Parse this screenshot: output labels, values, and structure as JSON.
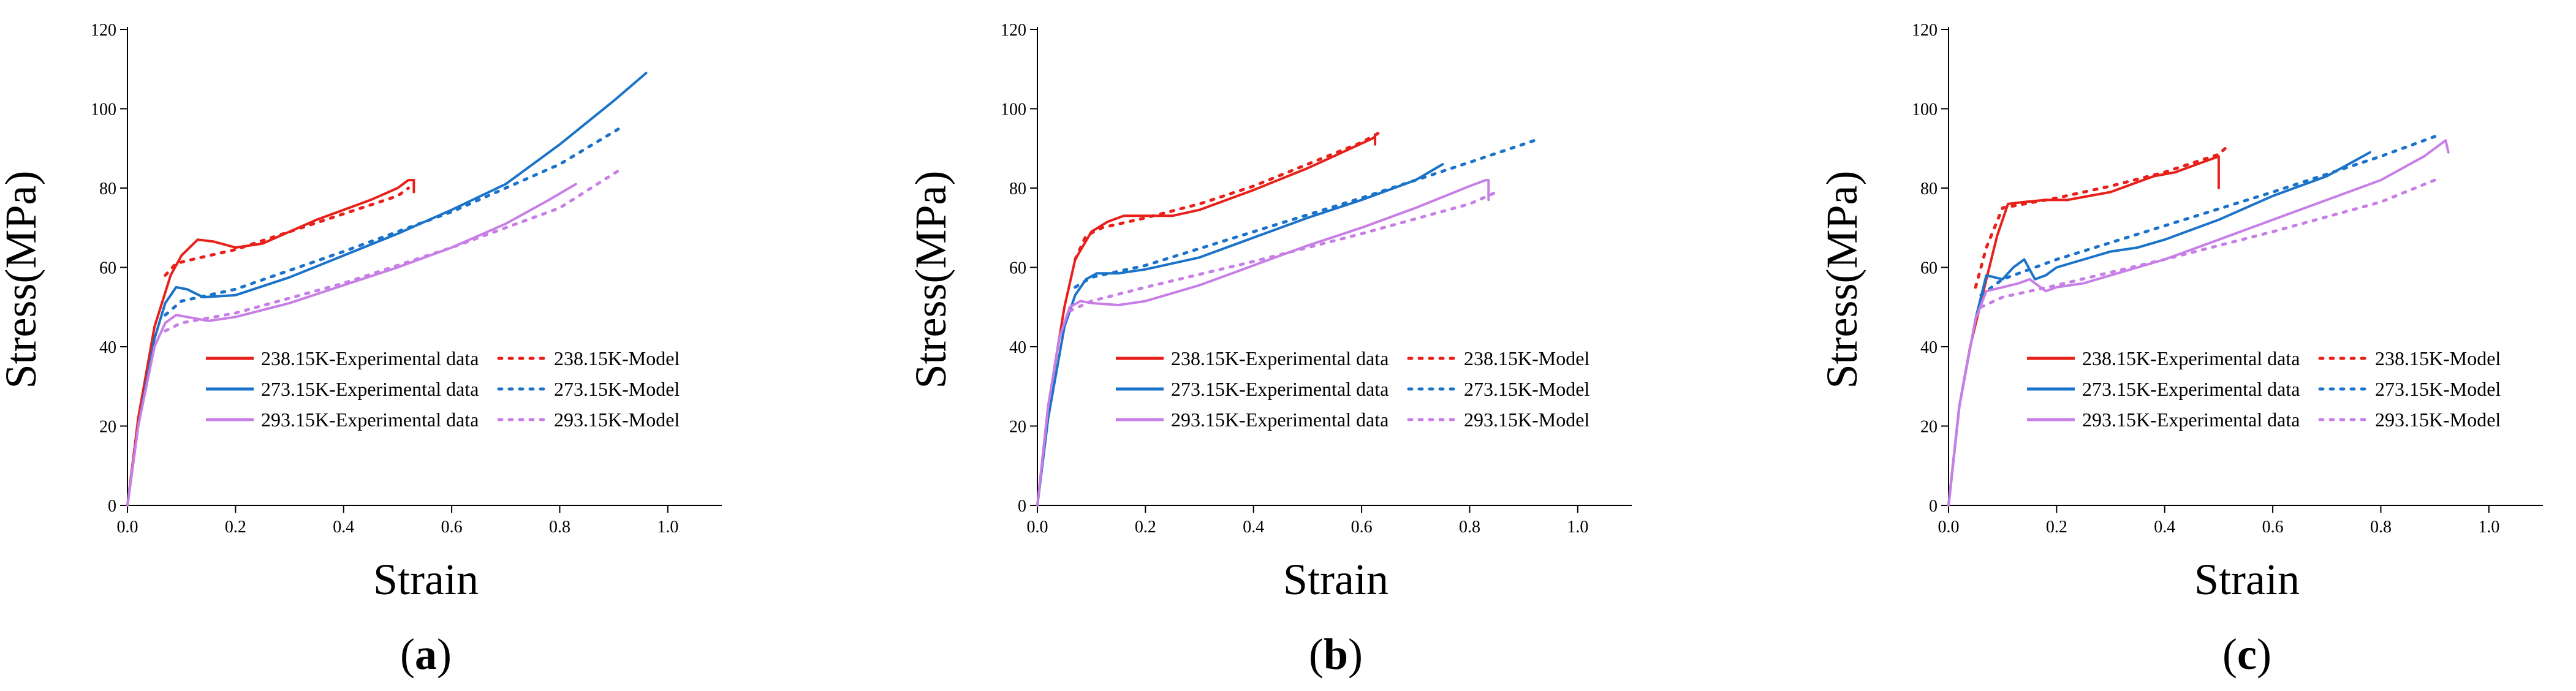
{
  "figure": {
    "panel_labels": [
      "a",
      "b",
      "c"
    ]
  },
  "chart_data": [
    {
      "type": "line",
      "panel": "a",
      "xlabel": "Strain",
      "ylabel": "Stress(MPa)",
      "xlim": [
        0,
        1.1
      ],
      "ylim": [
        0,
        120
      ],
      "xticks": [
        0,
        0.2,
        0.4,
        0.6,
        0.8,
        1.0
      ],
      "xtick_labels": [
        "0.0",
        "0.2",
        "0.4",
        "0.6",
        "0.8",
        "1.0"
      ],
      "yticks": [
        0,
        20,
        40,
        60,
        80,
        100,
        120
      ],
      "ytick_labels": [
        "0",
        "20",
        "40",
        "60",
        "80",
        "100",
        "120"
      ],
      "legend_position": "center-right",
      "series": [
        {
          "name": "238.15K-Experimental data",
          "color": "#e8201a",
          "style": "solid",
          "x": [
            0,
            0.02,
            0.05,
            0.08,
            0.1,
            0.13,
            0.16,
            0.2,
            0.25,
            0.3,
            0.35,
            0.4,
            0.45,
            0.5,
            0.52,
            0.53,
            0.53
          ],
          "y": [
            0,
            22,
            45,
            58,
            63,
            67,
            66.5,
            65,
            66,
            69,
            72,
            74.5,
            77,
            80,
            82,
            82,
            79
          ]
        },
        {
          "name": "238.15K-Model",
          "color": "#e8201a",
          "style": "dotted",
          "x": [
            0.07,
            0.09,
            0.12,
            0.2,
            0.3,
            0.4,
            0.5,
            0.52
          ],
          "y": [
            58,
            61,
            62,
            64.5,
            69,
            73.5,
            78,
            80
          ]
        },
        {
          "name": "273.15K-Experimental data",
          "color": "#1a72c9",
          "style": "solid",
          "x": [
            0,
            0.02,
            0.05,
            0.07,
            0.09,
            0.11,
            0.14,
            0.2,
            0.3,
            0.4,
            0.5,
            0.6,
            0.7,
            0.8,
            0.9,
            0.96
          ],
          "y": [
            0,
            20,
            42,
            51,
            55,
            54.5,
            52.5,
            53,
            57.5,
            63,
            68.5,
            74.5,
            81,
            91,
            102,
            109
          ]
        },
        {
          "name": "273.15K-Model",
          "color": "#1a72c9",
          "style": "dotted",
          "x": [
            0.07,
            0.1,
            0.2,
            0.4,
            0.6,
            0.8,
            0.91
          ],
          "y": [
            48,
            51.5,
            54.5,
            64,
            74,
            86,
            95
          ]
        },
        {
          "name": "293.15K-Experimental data",
          "color": "#c77fe6",
          "style": "solid",
          "x": [
            0,
            0.02,
            0.05,
            0.07,
            0.09,
            0.11,
            0.15,
            0.2,
            0.3,
            0.4,
            0.5,
            0.6,
            0.7,
            0.78,
            0.83
          ],
          "y": [
            0,
            20,
            40,
            46,
            48,
            47.5,
            46.5,
            47.5,
            51,
            55.5,
            60,
            65,
            71,
            77,
            81
          ]
        },
        {
          "name": "293.15K-Model",
          "color": "#c77fe6",
          "style": "dotted",
          "x": [
            0.07,
            0.1,
            0.2,
            0.4,
            0.6,
            0.8,
            0.91
          ],
          "y": [
            44,
            46,
            48.5,
            56,
            65,
            75,
            84.5
          ]
        }
      ]
    },
    {
      "type": "line",
      "panel": "b",
      "xlabel": "Strain",
      "ylabel": "Stress(MPa)",
      "xlim": [
        0,
        1.1
      ],
      "ylim": [
        0,
        120
      ],
      "xticks": [
        0,
        0.2,
        0.4,
        0.6,
        0.8,
        1.0
      ],
      "xtick_labels": [
        "0.0",
        "0.2",
        "0.4",
        "0.6",
        "0.8",
        "1.0"
      ],
      "yticks": [
        0,
        20,
        40,
        60,
        80,
        100,
        120
      ],
      "ytick_labels": [
        "0",
        "20",
        "40",
        "60",
        "80",
        "100",
        "120"
      ],
      "legend_position": "center-right",
      "series": [
        {
          "name": "238.15K-Experimental data",
          "color": "#e8201a",
          "style": "solid",
          "x": [
            0,
            0.02,
            0.05,
            0.07,
            0.1,
            0.13,
            0.16,
            0.2,
            0.25,
            0.3,
            0.4,
            0.5,
            0.58,
            0.62,
            0.625,
            0.625
          ],
          "y": [
            0,
            25,
            50,
            62,
            69,
            71.5,
            73,
            73,
            73,
            74.5,
            79.5,
            85,
            90,
            92.5,
            93,
            91
          ]
        },
        {
          "name": "238.15K-Model",
          "color": "#e8201a",
          "style": "dotted",
          "x": [
            0.07,
            0.09,
            0.12,
            0.2,
            0.3,
            0.4,
            0.5,
            0.6,
            0.64
          ],
          "y": [
            62,
            68,
            70,
            72.5,
            76,
            80.5,
            86,
            91.5,
            94.5
          ]
        },
        {
          "name": "273.15K-Experimental data",
          "color": "#1a72c9",
          "style": "solid",
          "x": [
            0,
            0.02,
            0.05,
            0.07,
            0.09,
            0.11,
            0.15,
            0.2,
            0.3,
            0.4,
            0.5,
            0.6,
            0.7,
            0.75
          ],
          "y": [
            0,
            22,
            45,
            53,
            57,
            58.5,
            58.5,
            59.5,
            62.5,
            67.5,
            72.5,
            77,
            82,
            86
          ]
        },
        {
          "name": "273.15K-Model",
          "color": "#1a72c9",
          "style": "dotted",
          "x": [
            0.07,
            0.1,
            0.2,
            0.4,
            0.6,
            0.8,
            0.92
          ],
          "y": [
            55,
            57.5,
            60.5,
            69,
            77.5,
            86.5,
            92
          ]
        },
        {
          "name": "293.15K-Experimental data",
          "color": "#c77fe6",
          "style": "solid",
          "x": [
            0,
            0.02,
            0.04,
            0.06,
            0.08,
            0.1,
            0.15,
            0.2,
            0.3,
            0.4,
            0.5,
            0.6,
            0.7,
            0.8,
            0.83,
            0.835,
            0.835
          ],
          "y": [
            0,
            25,
            42,
            50,
            51.5,
            51,
            50.5,
            51.5,
            55.5,
            60.5,
            65.5,
            70,
            75,
            80.5,
            82,
            82,
            77
          ]
        },
        {
          "name": "293.15K-Model",
          "color": "#c77fe6",
          "style": "dotted",
          "x": [
            0.06,
            0.1,
            0.2,
            0.4,
            0.6,
            0.8,
            0.85
          ],
          "y": [
            49,
            51.5,
            55,
            61.5,
            68.5,
            76,
            79
          ]
        }
      ]
    },
    {
      "type": "line",
      "panel": "c",
      "xlabel": "Strain",
      "ylabel": "Stress(MPa)",
      "xlim": [
        0,
        1.1
      ],
      "ylim": [
        0,
        120
      ],
      "xticks": [
        0,
        0.2,
        0.4,
        0.6,
        0.8,
        1.0
      ],
      "xtick_labels": [
        "0.0",
        "0.2",
        "0.4",
        "0.6",
        "0.8",
        "1.0"
      ],
      "yticks": [
        0,
        20,
        40,
        60,
        80,
        100,
        120
      ],
      "ytick_labels": [
        "0",
        "20",
        "40",
        "60",
        "80",
        "100",
        "120"
      ],
      "legend_position": "center-right",
      "series": [
        {
          "name": "238.15K-Experimental data",
          "color": "#e8201a",
          "style": "solid",
          "x": [
            0,
            0.02,
            0.04,
            0.07,
            0.09,
            0.11,
            0.14,
            0.18,
            0.22,
            0.26,
            0.3,
            0.34,
            0.38,
            0.42,
            0.46,
            0.48,
            0.5,
            0.5
          ],
          "y": [
            0,
            25,
            40,
            57,
            68,
            76,
            76.5,
            77,
            77,
            78,
            79,
            81,
            83,
            84,
            86,
            87,
            88,
            80
          ]
        },
        {
          "name": "238.15K-Model",
          "color": "#e8201a",
          "style": "dotted",
          "x": [
            0.05,
            0.07,
            0.1,
            0.2,
            0.3,
            0.4,
            0.5,
            0.52
          ],
          "y": [
            55,
            65,
            75,
            77.5,
            80.5,
            84,
            88.5,
            91
          ]
        },
        {
          "name": "273.15K-Experimental data",
          "color": "#1a72c9",
          "style": "solid",
          "x": [
            0,
            0.02,
            0.05,
            0.07,
            0.1,
            0.12,
            0.14,
            0.16,
            0.18,
            0.2,
            0.25,
            0.3,
            0.35,
            0.4,
            0.5,
            0.6,
            0.7,
            0.78
          ],
          "y": [
            0,
            25,
            47,
            58,
            57,
            60,
            62,
            57,
            58,
            60,
            62,
            64,
            65,
            67,
            72,
            78,
            83,
            89
          ]
        },
        {
          "name": "273.15K-Model",
          "color": "#1a72c9",
          "style": "dotted",
          "x": [
            0.06,
            0.1,
            0.2,
            0.4,
            0.6,
            0.8,
            0.9
          ],
          "y": [
            53,
            57,
            62,
            70.5,
            79,
            88,
            93
          ]
        },
        {
          "name": "293.15K-Experimental data",
          "color": "#c77fe6",
          "style": "solid",
          "x": [
            0,
            0.02,
            0.05,
            0.07,
            0.1,
            0.13,
            0.15,
            0.18,
            0.2,
            0.25,
            0.3,
            0.35,
            0.4,
            0.5,
            0.6,
            0.7,
            0.8,
            0.88,
            0.92,
            0.925
          ],
          "y": [
            0,
            25,
            47,
            54,
            55,
            56,
            57,
            54,
            55,
            56,
            58,
            60,
            62,
            67,
            72,
            77,
            82,
            88,
            92,
            89
          ]
        },
        {
          "name": "293.15K-Model",
          "color": "#c77fe6",
          "style": "dotted",
          "x": [
            0.06,
            0.1,
            0.2,
            0.4,
            0.6,
            0.8,
            0.9
          ],
          "y": [
            50,
            52.5,
            55.5,
            62,
            69,
            76.5,
            82
          ]
        }
      ]
    }
  ]
}
